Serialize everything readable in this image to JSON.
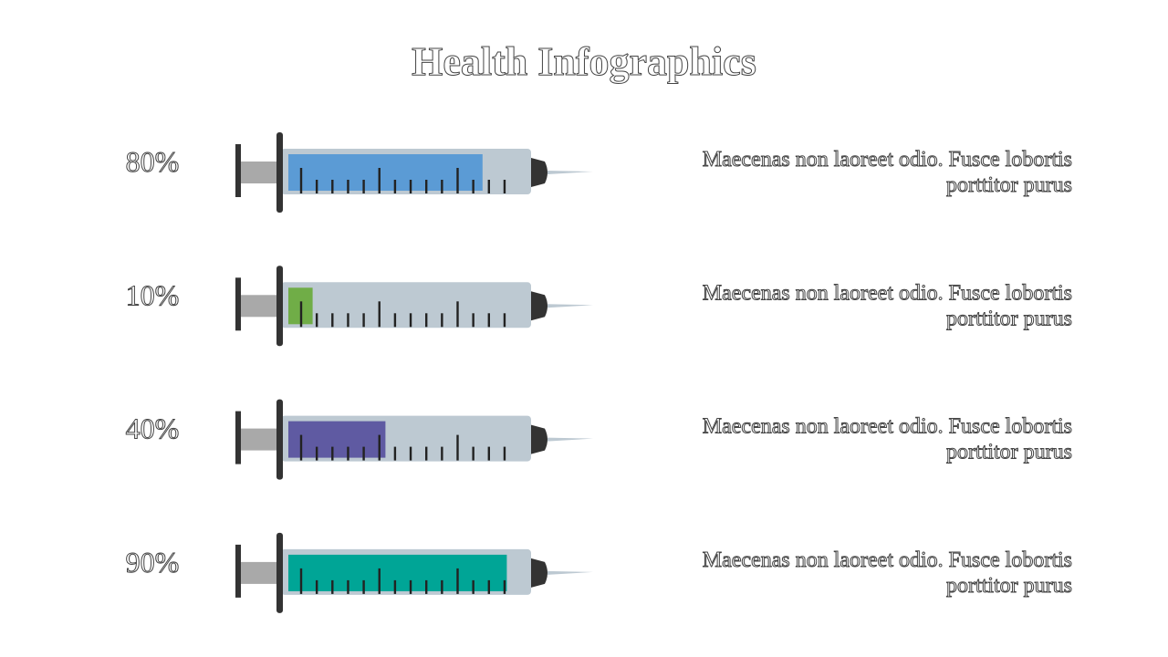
{
  "chart_data": {
    "type": "syringe",
    "title": "Health Infographics",
    "values": [
      80,
      10,
      40,
      90
    ],
    "value_labels": [
      "80%",
      "10%",
      "40%",
      "90%"
    ],
    "colors": [
      "#5b9bd5",
      "#70ad47",
      "#5f5aa2",
      "#00a596"
    ],
    "xlim": [
      0,
      100
    ],
    "annotations": [
      [
        "Maecenas non laoreet odio. Fusce lobortis",
        "porttitor purus"
      ],
      [
        "Maecenas non laoreet odio. Fusce lobortis",
        "porttitor purus"
      ],
      [
        "Maecenas non laoreet odio. Fusce lobortis",
        "porttitor purus"
      ],
      [
        "Maecenas non laoreet odio. Fusce lobortis",
        "porttitor purus"
      ]
    ]
  }
}
